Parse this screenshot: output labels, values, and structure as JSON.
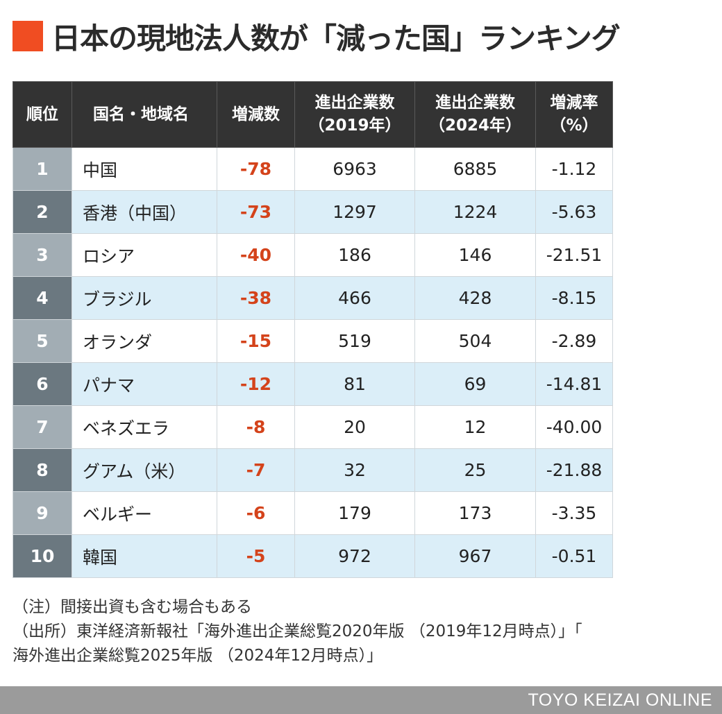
{
  "title": "日本の現地法人数が「減った国」ランキング",
  "colors": {
    "title_marker": "#f04d22",
    "header_bg": "#333333",
    "negative_value": "#d4431b",
    "row_highlight": "#dbeef8",
    "rank_light": "#a2adb4",
    "rank_dark": "#6b7880",
    "footer_bg": "#9b9b9b"
  },
  "table": {
    "headers": {
      "rank": "順位",
      "name": "国名・地域名",
      "diff": "増減数",
      "n2019_line1": "進出企業数",
      "n2019_line2": "（2019年）",
      "n2024_line1": "進出企業数",
      "n2024_line2": "（2024年）",
      "pct_line1": "増減率",
      "pct_line2": "（%）"
    },
    "rows": [
      {
        "rank": "1",
        "name": "中国",
        "diff": "-78",
        "n2019": "6963",
        "n2024": "6885",
        "pct": "-1.12"
      },
      {
        "rank": "2",
        "name": "香港（中国）",
        "diff": "-73",
        "n2019": "1297",
        "n2024": "1224",
        "pct": "-5.63"
      },
      {
        "rank": "3",
        "name": "ロシア",
        "diff": "-40",
        "n2019": "186",
        "n2024": "146",
        "pct": "-21.51"
      },
      {
        "rank": "4",
        "name": "ブラジル",
        "diff": "-38",
        "n2019": "466",
        "n2024": "428",
        "pct": "-8.15"
      },
      {
        "rank": "5",
        "name": "オランダ",
        "diff": "-15",
        "n2019": "519",
        "n2024": "504",
        "pct": "-2.89"
      },
      {
        "rank": "6",
        "name": "パナマ",
        "diff": "-12",
        "n2019": "81",
        "n2024": "69",
        "pct": "-14.81"
      },
      {
        "rank": "7",
        "name": "ベネズエラ",
        "diff": "-8",
        "n2019": "20",
        "n2024": "12",
        "pct": "-40.00"
      },
      {
        "rank": "8",
        "name": "グアム（米）",
        "diff": "-7",
        "n2019": "32",
        "n2024": "25",
        "pct": "-21.88"
      },
      {
        "rank": "9",
        "name": "ベルギー",
        "diff": "-6",
        "n2019": "179",
        "n2024": "173",
        "pct": "-3.35"
      },
      {
        "rank": "10",
        "name": "韓国",
        "diff": "-5",
        "n2019": "972",
        "n2024": "967",
        "pct": "-0.51"
      }
    ]
  },
  "notes": {
    "note": "（注）間接出資も含む場合もある",
    "source_line1": "（出所）東洋経済新報社「海外進出企業総覧2020年版 （2019年12月時点）」「",
    "source_line2": "海外進出企業総覧2025年版 （2024年12月時点）」"
  },
  "footer": {
    "brand": "TOYO KEIZAI ONLINE"
  }
}
